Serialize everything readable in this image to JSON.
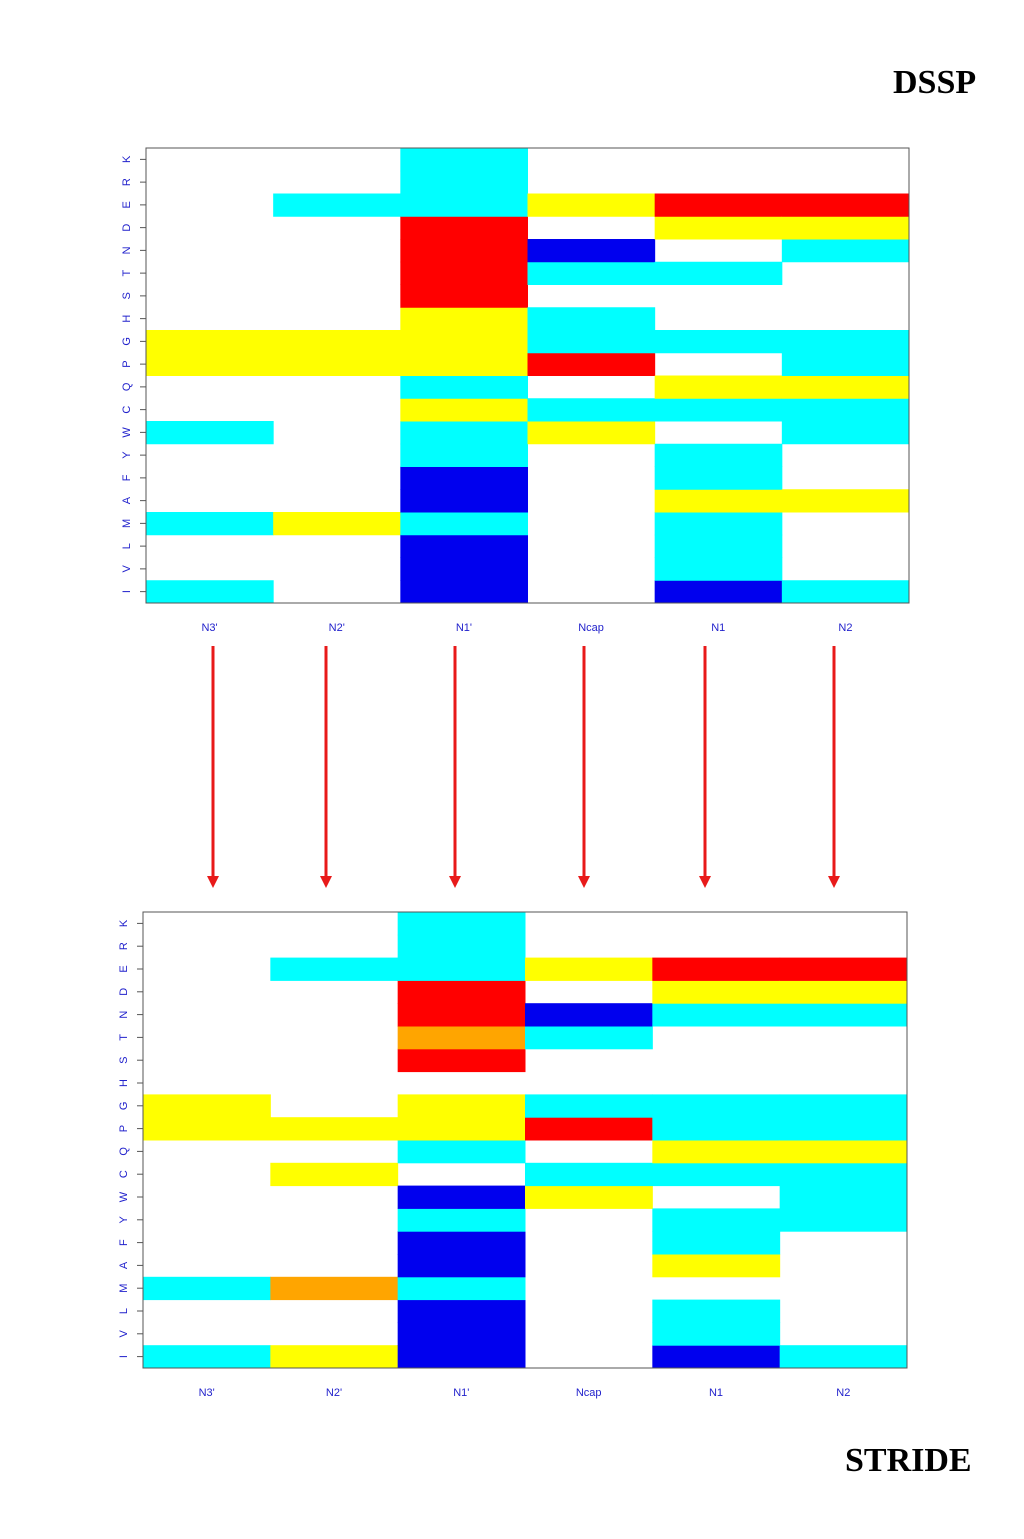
{
  "labels": {
    "top": "DSSP",
    "bottom": "STRIDE"
  },
  "colors": {
    "white": "#ffffff",
    "cyan": "#00ffff",
    "yellow": "#ffff00",
    "red": "#ff0000",
    "blue": "#0000ee",
    "orange": "#ffa500",
    "axis_text": "#2222cc",
    "arrow": "#e81a1a"
  },
  "chart_data": [
    {
      "type": "heatmap",
      "title": "DSSP",
      "x_categories": [
        "N3'",
        "N2'",
        "N1'",
        "Ncap",
        "N1",
        "N2"
      ],
      "y_categories": [
        "I",
        "V",
        "L",
        "M",
        "A",
        "F",
        "Y",
        "W",
        "C",
        "Q",
        "P",
        "G",
        "H",
        "S",
        "T",
        "N",
        "D",
        "E",
        "R",
        "K"
      ],
      "legend": "none",
      "cells_by_column": {
        "N3'": [
          "cyan",
          "white",
          "white",
          "cyan",
          "white",
          "white",
          "white",
          "cyan",
          "white",
          "white",
          "yellow",
          "yellow",
          "white",
          "white",
          "white",
          "white",
          "white",
          "white",
          "white",
          "white"
        ],
        "N2'": [
          "white",
          "white",
          "white",
          "yellow",
          "white",
          "white",
          "white",
          "white",
          "white",
          "white",
          "yellow",
          "yellow",
          "white",
          "white",
          "white",
          "white",
          "white",
          "cyan",
          "white",
          "white"
        ],
        "N1'": [
          "blue",
          "blue",
          "blue",
          "cyan",
          "blue",
          "blue",
          "cyan",
          "cyan",
          "yellow",
          "cyan",
          "yellow",
          "yellow",
          "yellow",
          "red",
          "red",
          "red",
          "red",
          "cyan",
          "cyan",
          "cyan"
        ],
        "Ncap": [
          "white",
          "white",
          "white",
          "white",
          "white",
          "white",
          "white",
          "yellow",
          "cyan",
          "white",
          "red",
          "cyan",
          "cyan",
          "white",
          "cyan",
          "blue",
          "white",
          "yellow",
          "white",
          "white"
        ],
        "N1": [
          "blue",
          "cyan",
          "cyan",
          "cyan",
          "yellow",
          "cyan",
          "cyan",
          "white",
          "cyan",
          "yellow",
          "white",
          "cyan",
          "white",
          "white",
          "cyan",
          "white",
          "yellow",
          "red",
          "white",
          "white"
        ],
        "N2": [
          "cyan",
          "white",
          "white",
          "white",
          "yellow",
          "white",
          "white",
          "cyan",
          "cyan",
          "yellow",
          "cyan",
          "cyan",
          "white",
          "white",
          "white",
          "cyan",
          "yellow",
          "red",
          "white",
          "white"
        ]
      }
    },
    {
      "type": "heatmap",
      "title": "STRIDE",
      "x_categories": [
        "N3'",
        "N2'",
        "N1'",
        "Ncap",
        "N1",
        "N2"
      ],
      "y_categories": [
        "I",
        "V",
        "L",
        "M",
        "A",
        "F",
        "Y",
        "W",
        "C",
        "Q",
        "P",
        "G",
        "H",
        "S",
        "T",
        "N",
        "D",
        "E",
        "R",
        "K"
      ],
      "legend": "none",
      "cells_by_column": {
        "N3'": [
          "cyan",
          "white",
          "white",
          "cyan",
          "white",
          "white",
          "white",
          "white",
          "white",
          "white",
          "yellow",
          "yellow",
          "white",
          "white",
          "white",
          "white",
          "white",
          "white",
          "white",
          "white"
        ],
        "N2'": [
          "yellow",
          "white",
          "white",
          "orange",
          "white",
          "white",
          "white",
          "white",
          "yellow",
          "white",
          "yellow",
          "white",
          "white",
          "white",
          "white",
          "white",
          "white",
          "cyan",
          "white",
          "white"
        ],
        "N1'": [
          "blue",
          "blue",
          "blue",
          "cyan",
          "blue",
          "blue",
          "cyan",
          "blue",
          "white",
          "cyan",
          "yellow",
          "yellow",
          "white",
          "red",
          "orange",
          "red",
          "red",
          "cyan",
          "cyan",
          "cyan"
        ],
        "Ncap": [
          "white",
          "white",
          "white",
          "white",
          "white",
          "white",
          "white",
          "yellow",
          "cyan",
          "white",
          "red",
          "cyan",
          "white",
          "white",
          "cyan",
          "blue",
          "white",
          "yellow",
          "white",
          "white"
        ],
        "N1": [
          "blue",
          "cyan",
          "cyan",
          "white",
          "yellow",
          "cyan",
          "cyan",
          "white",
          "cyan",
          "yellow",
          "cyan",
          "cyan",
          "white",
          "white",
          "white",
          "cyan",
          "yellow",
          "red",
          "white",
          "white"
        ],
        "N2": [
          "cyan",
          "white",
          "white",
          "white",
          "white",
          "white",
          "cyan",
          "cyan",
          "cyan",
          "yellow",
          "cyan",
          "cyan",
          "white",
          "white",
          "white",
          "cyan",
          "yellow",
          "red",
          "white",
          "white"
        ]
      }
    }
  ]
}
